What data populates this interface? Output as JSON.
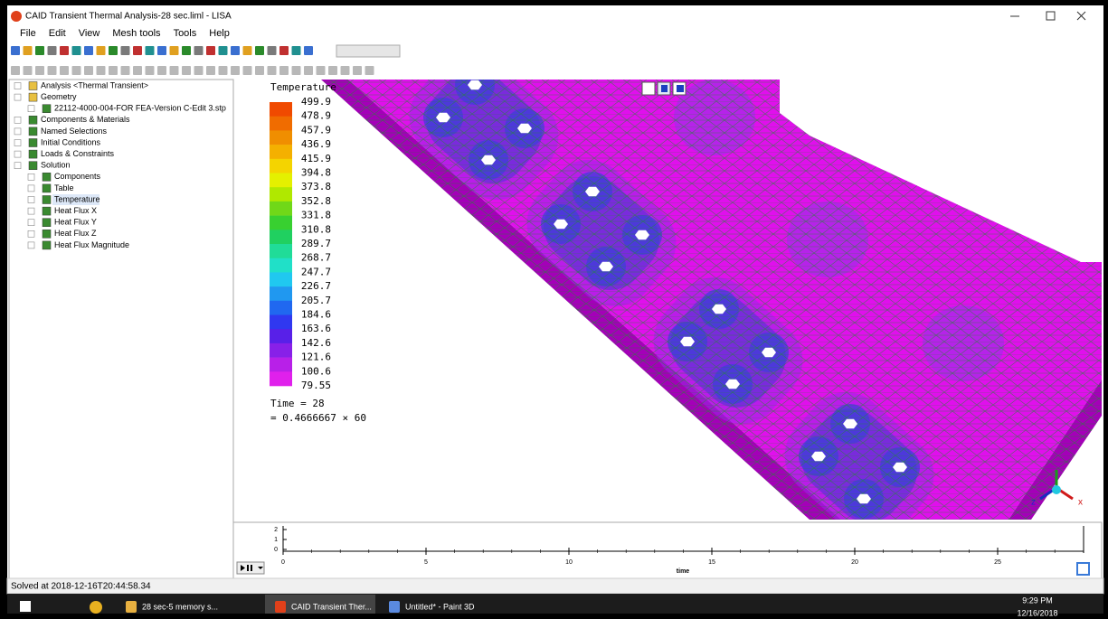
{
  "window": {
    "title": "CAID Transient Thermal Analysis-28 sec.liml - LISA"
  },
  "menu": [
    "File",
    "Edit",
    "View",
    "Mesh tools",
    "Tools",
    "Help"
  ],
  "tree": [
    {
      "label": "Analysis <Thermal Transient>"
    },
    {
      "label": "Geometry",
      "children": [
        {
          "label": "22112-4000-004-FOR FEA-Version C-Edit 3.stp"
        }
      ]
    },
    {
      "label": "Components & Materials"
    },
    {
      "label": "Named Selections"
    },
    {
      "label": "Initial Conditions"
    },
    {
      "label": "Loads & Constraints"
    },
    {
      "label": "Solution",
      "children": [
        {
          "label": "Components"
        },
        {
          "label": "Table"
        },
        {
          "label": "Temperature"
        },
        {
          "label": "Heat Flux X"
        },
        {
          "label": "Heat Flux Y"
        },
        {
          "label": "Heat Flux Z"
        },
        {
          "label": "Heat Flux Magnitude"
        }
      ]
    }
  ],
  "legend": {
    "title": "Temperature",
    "labels": [
      "499.9",
      "478.9",
      "457.9",
      "436.9",
      "415.9",
      "394.8",
      "373.8",
      "352.8",
      "331.8",
      "310.8",
      "289.7",
      "268.7",
      "247.7",
      "226.7",
      "205.7",
      "184.6",
      "163.6",
      "142.6",
      "121.6",
      "100.6",
      "79.55"
    ],
    "colors": [
      "#f04a00",
      "#f06c00",
      "#f08e00",
      "#f4b000",
      "#f4d400",
      "#e4f000",
      "#b0e800",
      "#70d818",
      "#38d030",
      "#20d060",
      "#20dc98",
      "#20e0c8",
      "#20c8f0",
      "#2098f0",
      "#2068f0",
      "#3038f0",
      "#5820e8",
      "#8820e8",
      "#b820e8",
      "#e020ec"
    ],
    "time": "Time = 28",
    "time_expr": "= 0.4666667 × 60"
  },
  "timeline": {
    "yticks": [
      2,
      1,
      0
    ],
    "xticks": [
      0,
      5,
      10,
      15,
      20,
      25
    ],
    "xlabel": "time"
  },
  "status": "Solved at 2018-12-16T20:44:58.34",
  "taskbar": {
    "items": [
      "28 sec-5 memory s...",
      "CAID Transient Ther...",
      "Untitled* - Paint 3D"
    ],
    "time": "9:29 PM",
    "date": "12/16/2018"
  }
}
